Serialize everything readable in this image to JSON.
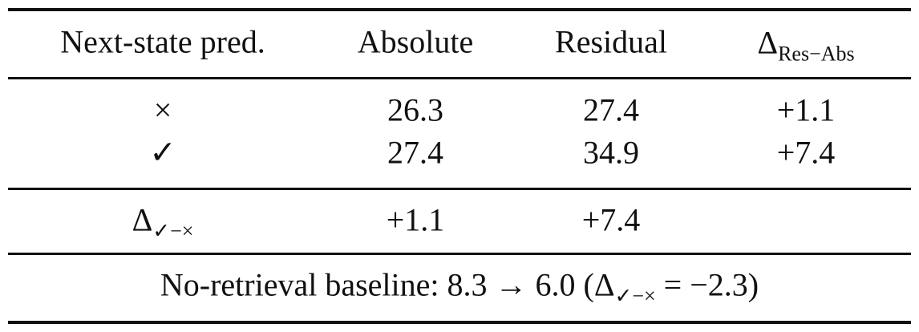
{
  "table": {
    "header": [
      "Next-state pred.",
      "Absolute",
      "Residual",
      {
        "symbol": "Δ",
        "sub": "Res−Abs"
      }
    ],
    "rows": [
      [
        "×",
        "26.3",
        "27.4",
        "+1.1"
      ],
      [
        "✓",
        "27.4",
        "34.9",
        "+7.4"
      ]
    ],
    "delta_row": {
      "label": {
        "symbol": "Δ",
        "sub": "✓−×"
      },
      "values": [
        "+1.1",
        "+7.4"
      ]
    },
    "footer": {
      "before": "No-retrieval baseline: 8.3 → 6.0 (Δ",
      "sub": "✓−×",
      "after": " = −2.3)"
    }
  }
}
